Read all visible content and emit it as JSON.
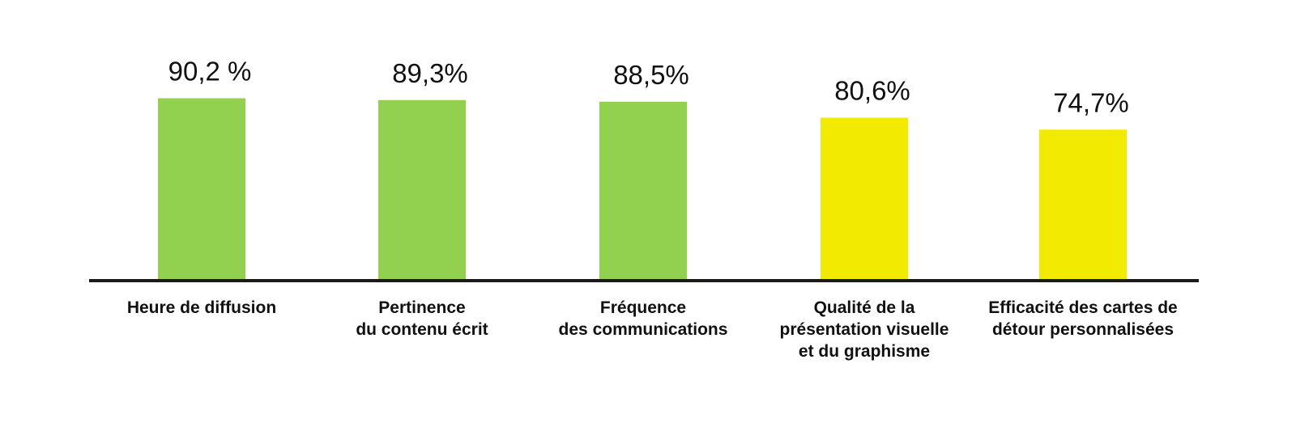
{
  "chart_data": {
    "type": "bar",
    "categories": [
      [
        "Heure de diffusion"
      ],
      [
        "Pertinence",
        "du contenu écrit"
      ],
      [
        "Fréquence",
        "des communications"
      ],
      [
        "Qualité de la",
        "présentation visuelle",
        "et du graphisme"
      ],
      [
        "Efficacité des cartes de",
        "détour personnalisées"
      ]
    ],
    "values": [
      90.2,
      89.3,
      88.5,
      80.6,
      74.7
    ],
    "value_labels": [
      "90,2 %",
      "89,3%",
      "88,5%",
      "80,6%",
      "74,7%"
    ],
    "bar_colors": [
      "#92d050",
      "#92d050",
      "#92d050",
      "#f2ea00",
      "#f2ea00"
    ],
    "axis_color": "#1a1a1a",
    "ylim": [
      0,
      100
    ],
    "title": "",
    "xlabel": "",
    "ylabel": "",
    "grid": false
  }
}
